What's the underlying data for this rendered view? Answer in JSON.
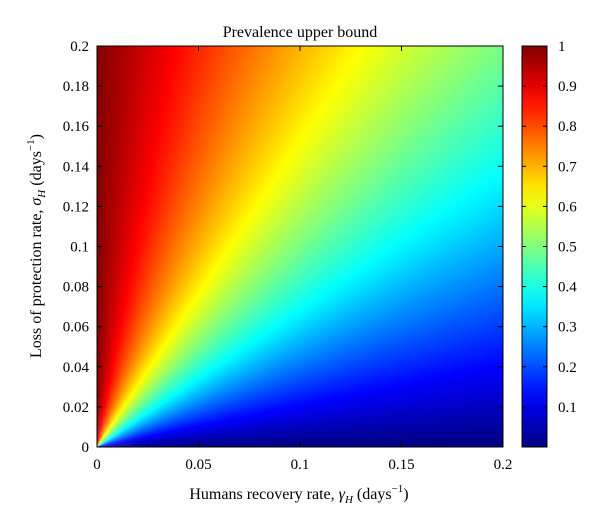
{
  "chart_data": {
    "type": "heatmap",
    "title": "Prevalence upper bound",
    "xlabel": {
      "main": "Humans recovery rate, ",
      "sym": "γ",
      "sub": "H",
      "unit_open": " (days",
      "sup": "−1",
      "unit_close": ")"
    },
    "ylabel": {
      "main": "Loss of protection rate, ",
      "sym": "σ",
      "sub": "H",
      "unit_open": " (days",
      "sup": "−1",
      "unit_close": ")"
    },
    "xlim": [
      0,
      0.2
    ],
    "ylim": [
      0,
      0.2
    ],
    "xticks": [
      {
        "value": 0,
        "label": "0"
      },
      {
        "value": 0.05,
        "label": "0.05"
      },
      {
        "value": 0.1,
        "label": "0.1"
      },
      {
        "value": 0.15,
        "label": "0.15"
      },
      {
        "value": 0.2,
        "label": "0.2"
      }
    ],
    "yticks": [
      {
        "value": 0,
        "label": "0"
      },
      {
        "value": 0.02,
        "label": "0.02"
      },
      {
        "value": 0.04,
        "label": "0.04"
      },
      {
        "value": 0.06,
        "label": "0.06"
      },
      {
        "value": 0.08,
        "label": "0.08"
      },
      {
        "value": 0.1,
        "label": "0.1"
      },
      {
        "value": 0.12,
        "label": "0.12"
      },
      {
        "value": 0.14,
        "label": "0.14"
      },
      {
        "value": 0.16,
        "label": "0.16"
      },
      {
        "value": 0.18,
        "label": "0.18"
      },
      {
        "value": 0.2,
        "label": "0.2"
      }
    ],
    "colorbar": {
      "colormap": "jet",
      "range": [
        0,
        1
      ],
      "ticks": [
        {
          "value": 0.1,
          "label": "0.1"
        },
        {
          "value": 0.2,
          "label": "0.2"
        },
        {
          "value": 0.3,
          "label": "0.3"
        },
        {
          "value": 0.4,
          "label": "0.4"
        },
        {
          "value": 0.5,
          "label": "0.5"
        },
        {
          "value": 0.6,
          "label": "0.6"
        },
        {
          "value": 0.7,
          "label": "0.7"
        },
        {
          "value": 0.8,
          "label": "0.8"
        },
        {
          "value": 0.9,
          "label": "0.9"
        },
        {
          "value": 1,
          "label": "1"
        }
      ]
    },
    "value_samples": [
      {
        "x": 0.005,
        "y": 0.195,
        "value": 0.97
      },
      {
        "x": 0.2,
        "y": 0.2,
        "value": 0.5
      },
      {
        "x": 0.1,
        "y": 0.1,
        "value": 0.5
      },
      {
        "x": 0.2,
        "y": 0.1,
        "value": 0.33
      },
      {
        "x": 0.1,
        "y": 0.2,
        "value": 0.67
      },
      {
        "x": 0.2,
        "y": 0.02,
        "value": 0.09
      }
    ],
    "grid": false
  }
}
